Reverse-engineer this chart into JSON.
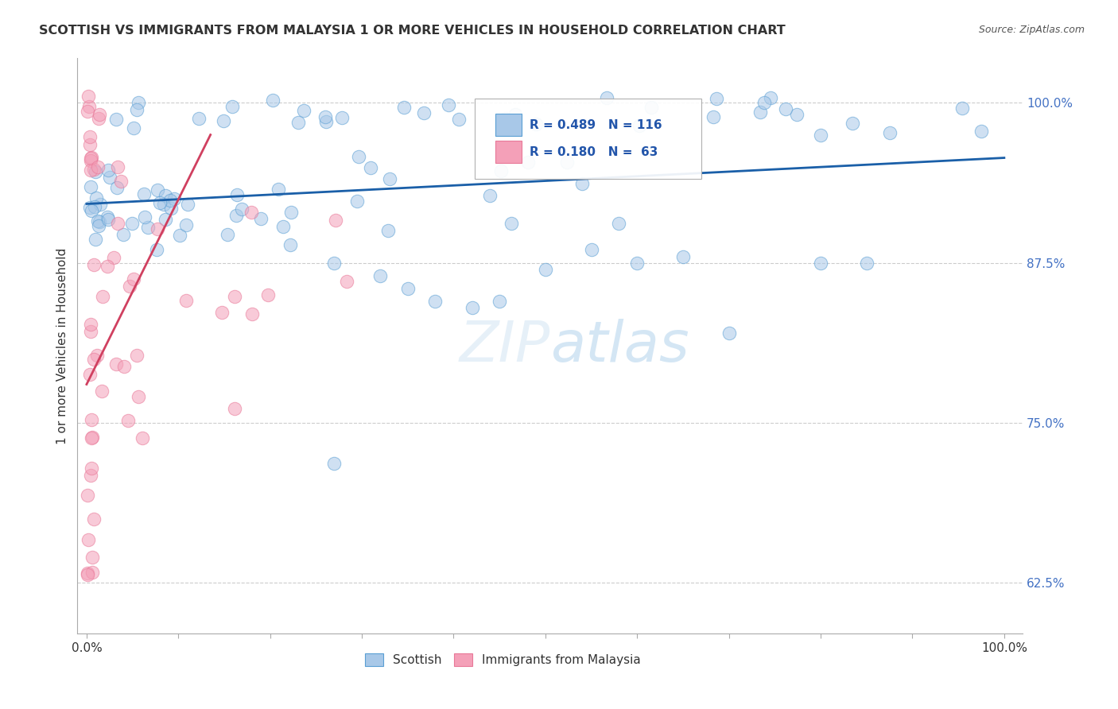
{
  "title": "SCOTTISH VS IMMIGRANTS FROM MALAYSIA 1 OR MORE VEHICLES IN HOUSEHOLD CORRELATION CHART",
  "source": "Source: ZipAtlas.com",
  "ylabel": "1 or more Vehicles in Household",
  "legend_labels": [
    "Scottish",
    "Immigrants from Malaysia"
  ],
  "blue_color": "#a8c8e8",
  "pink_color": "#f4a0b8",
  "blue_edge_color": "#5a9fd4",
  "pink_edge_color": "#e87898",
  "blue_line_color": "#1a5fa8",
  "pink_line_color": "#d04060",
  "background_color": "#ffffff",
  "y_tick_positions": [
    0.625,
    0.75,
    0.875,
    1.0
  ],
  "y_tick_labels": [
    "62.5%",
    "75.0%",
    "87.5%",
    "100.0%"
  ],
  "xlim_min": -0.01,
  "xlim_max": 1.02,
  "ylim_min": 0.585,
  "ylim_max": 1.035,
  "r_blue": "R = 0.489",
  "n_blue": "N = 116",
  "r_pink": "R = 0.180",
  "n_pink": "N =  63"
}
